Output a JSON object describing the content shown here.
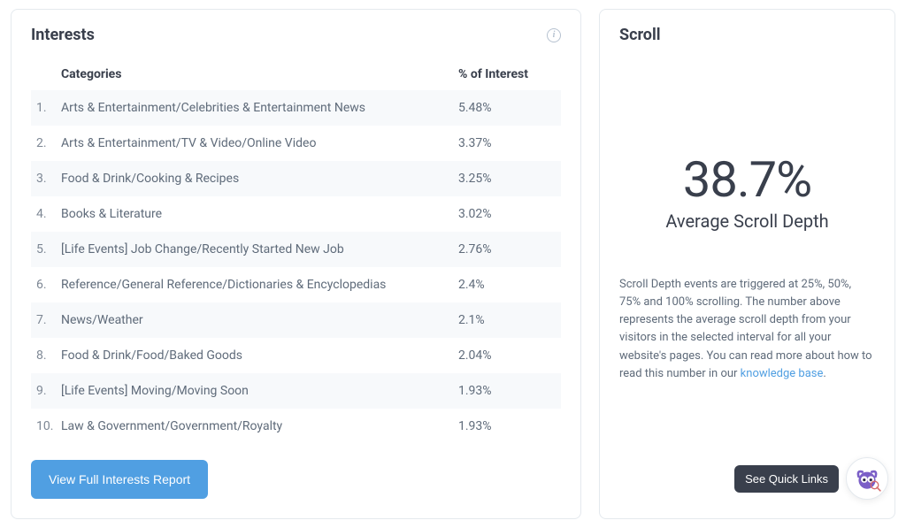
{
  "interests": {
    "title": "Interests",
    "columns": {
      "categories": "Categories",
      "pct": "% of Interest"
    },
    "rows": [
      {
        "rank": "1.",
        "category": "Arts & Entertainment/Celebrities & Entertainment News",
        "pct": "5.48%"
      },
      {
        "rank": "2.",
        "category": "Arts & Entertainment/TV & Video/Online Video",
        "pct": "3.37%"
      },
      {
        "rank": "3.",
        "category": "Food & Drink/Cooking & Recipes",
        "pct": "3.25%"
      },
      {
        "rank": "4.",
        "category": "Books & Literature",
        "pct": "3.02%"
      },
      {
        "rank": "5.",
        "category": "[Life Events] Job Change/Recently Started New Job",
        "pct": "2.76%"
      },
      {
        "rank": "6.",
        "category": "Reference/General Reference/Dictionaries & Encyclopedias",
        "pct": "2.4%"
      },
      {
        "rank": "7.",
        "category": "News/Weather",
        "pct": "2.1%"
      },
      {
        "rank": "8.",
        "category": "Food & Drink/Food/Baked Goods",
        "pct": "2.04%"
      },
      {
        "rank": "9.",
        "category": "[Life Events] Moving/Moving Soon",
        "pct": "1.93%"
      },
      {
        "rank": "10.",
        "category": "Law & Government/Government/Royalty",
        "pct": "1.93%"
      }
    ],
    "button": "View Full Interests Report"
  },
  "scroll": {
    "title": "Scroll",
    "value": "38.7%",
    "label": "Average Scroll Depth",
    "desc_pre": "Scroll Depth events are triggered at 25%, 50%, 75% and 100% scrolling. The number above represents the average scroll depth from your visitors in the selected interval for all your website's pages. You can read more about how to read this number in our ",
    "link_text": "knowledge base",
    "desc_post": "."
  },
  "floating": {
    "quick_links": "See Quick Links"
  },
  "colors": {
    "primary_button": "#509fe2",
    "card_border": "#e4e9ee",
    "text_heading": "#393f4c",
    "text_body": "#5f6b7a",
    "row_stripe": "#f7f9fb",
    "link": "#509fe2",
    "mascot": "#7b5fc7"
  }
}
